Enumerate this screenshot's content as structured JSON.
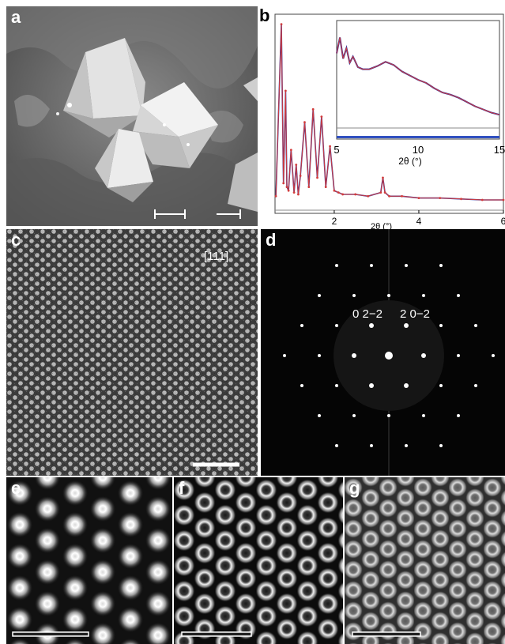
{
  "panels": {
    "a": {
      "label": "a"
    },
    "b": {
      "label": "b"
    },
    "c": {
      "label": "c",
      "zone_axis": "[111]"
    },
    "d": {
      "label": "d",
      "spot_left": "0 2−2",
      "spot_right": "2 0−2"
    },
    "e": {
      "label": "e"
    },
    "f": {
      "label": "f"
    },
    "g": {
      "label": "g"
    }
  },
  "colors": {
    "fit_line": "#d23c3c",
    "observed": "#2d2d9a",
    "difference": "#8a8a8a",
    "ticks_bar": "#3050c0"
  },
  "chart_data": [
    {
      "type": "line",
      "name": "main-pattern",
      "xlabel": "2θ (°)",
      "xlim": [
        0.6,
        6
      ],
      "xticks": [
        2,
        4,
        6
      ],
      "tick_labels": [
        "2",
        "4",
        "6"
      ],
      "ylim": [
        0,
        1
      ],
      "x": [
        0.62,
        0.75,
        0.8,
        0.85,
        0.88,
        0.92,
        0.98,
        1.05,
        1.1,
        1.15,
        1.2,
        1.3,
        1.4,
        1.5,
        1.6,
        1.7,
        1.8,
        1.9,
        2.0,
        2.1,
        2.2,
        2.5,
        2.8,
        3.1,
        3.15,
        3.2,
        3.3,
        3.6,
        4.0,
        4.5,
        5.0,
        5.5,
        6.0
      ],
      "y": [
        0.05,
        0.98,
        0.12,
        0.62,
        0.1,
        0.08,
        0.3,
        0.07,
        0.22,
        0.06,
        0.16,
        0.45,
        0.1,
        0.52,
        0.15,
        0.48,
        0.1,
        0.32,
        0.08,
        0.07,
        0.06,
        0.06,
        0.05,
        0.07,
        0.15,
        0.07,
        0.05,
        0.05,
        0.04,
        0.04,
        0.035,
        0.03,
        0.03
      ]
    },
    {
      "type": "line",
      "name": "inset-pattern",
      "xlabel": "2θ (°)",
      "xlim": [
        5,
        15
      ],
      "xticks": [
        5,
        10,
        15
      ],
      "tick_labels": [
        "5",
        "10",
        "15"
      ],
      "ylim": [
        0,
        1
      ],
      "x": [
        5.0,
        5.2,
        5.4,
        5.6,
        5.8,
        6.0,
        6.3,
        6.6,
        7.0,
        7.5,
        8.0,
        8.5,
        9.0,
        9.5,
        10.0,
        10.5,
        11.0,
        11.5,
        12.0,
        12.5,
        13.0,
        13.5,
        14.0,
        14.5,
        15.0
      ],
      "y": [
        0.75,
        0.9,
        0.7,
        0.8,
        0.66,
        0.72,
        0.62,
        0.6,
        0.6,
        0.63,
        0.67,
        0.64,
        0.58,
        0.54,
        0.5,
        0.47,
        0.42,
        0.38,
        0.36,
        0.33,
        0.29,
        0.25,
        0.22,
        0.19,
        0.17
      ]
    }
  ]
}
